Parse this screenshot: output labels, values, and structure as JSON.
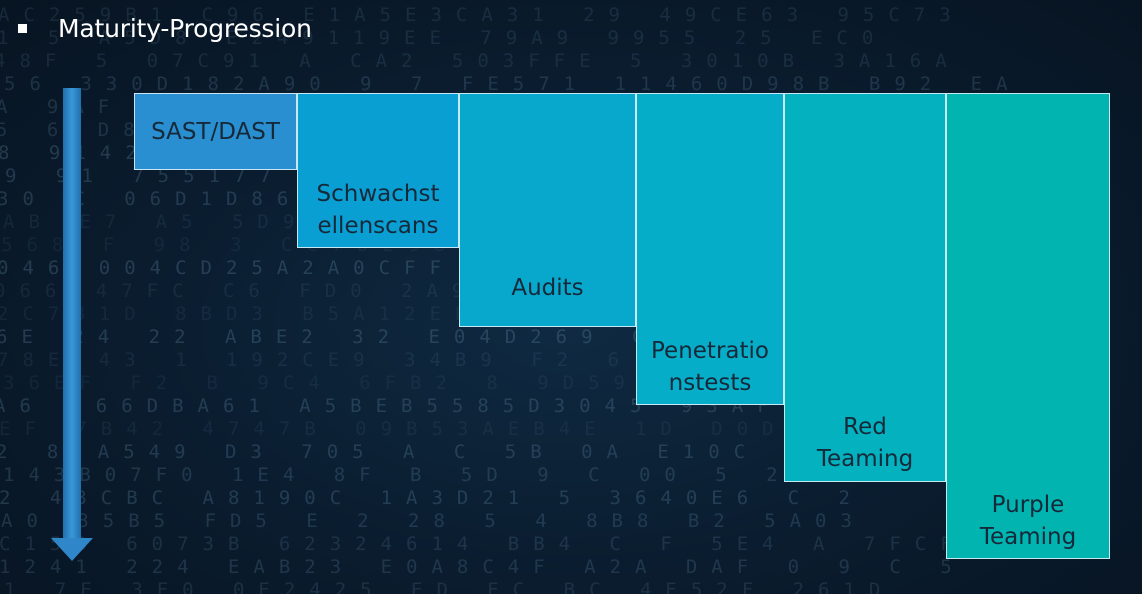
{
  "slide": {
    "title": "Maturity-Progression",
    "bullet_icon": "square-bullet-icon"
  },
  "arrow": {
    "icon": "arrow-down-icon",
    "color": "#2f86c8"
  },
  "stages": [
    {
      "label": "SAST/DAST",
      "color": "#2a8fd0"
    },
    {
      "label": "Schwachst\nellenscans",
      "color": "#0a9fd3"
    },
    {
      "label": "Audits",
      "color": "#08a8cd"
    },
    {
      "label": "Penetratio\nnstests",
      "color": "#05adc8"
    },
    {
      "label": "Red\nTeaming",
      "color": "#04b1bf"
    },
    {
      "label": "Purple\nTeaming",
      "color": "#02b4b0"
    }
  ]
}
